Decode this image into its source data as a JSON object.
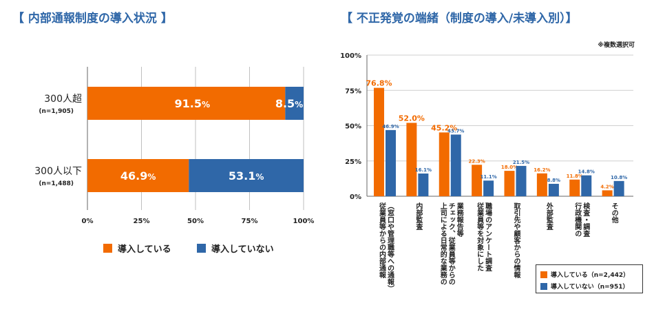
{
  "colors": {
    "orange": "#f26b00",
    "blue": "#2f67a8",
    "title": "#2f67a8"
  },
  "left_title": "【 内部通報制度の導入状況 】",
  "right_title": "【 不正発覚の端緒（制度の導入/未導入別）】",
  "right_note": "※複数選択可",
  "chart_data": [
    {
      "type": "bar",
      "orientation": "horizontal",
      "stacked": true,
      "percent_suffix": "%",
      "categories": [
        {
          "label": "300人超",
          "sub": "(n=1,905)"
        },
        {
          "label": "300人以下",
          "sub": "(n=1,488)"
        }
      ],
      "series": [
        {
          "name": "導入している",
          "values": [
            91.5,
            46.9
          ]
        },
        {
          "name": "導入していない",
          "values": [
            8.5,
            53.1
          ]
        }
      ],
      "xlim": [
        0,
        100
      ],
      "xticks": [
        "0%",
        "25%",
        "50%",
        "75%",
        "100%"
      ],
      "grid": true,
      "legend_position": "bottom"
    },
    {
      "type": "bar",
      "orientation": "vertical",
      "ylim": [
        0,
        100
      ],
      "yticks": [
        "0%",
        "25%",
        "50%",
        "75%",
        "100%"
      ],
      "categories": [
        "従業員等からの内部通報（窓口や管理職等への通報）",
        "内部監査",
        "上司による日常的な業務のチェック、従業員等からの業務報告等",
        "従業員等を対象にした職場のアンケート調査",
        "取引先や顧客からの情報",
        "外部監査",
        "行政機関の検査・調査",
        "その他"
      ],
      "category_lines": [
        [
          "従業員等からの内部通報",
          "（窓口や管理職等への通報）"
        ],
        [
          "内部監査"
        ],
        [
          "上司による日常的な業務の",
          "チェック、従業員等からの",
          "業務報告等"
        ],
        [
          "従業員等を対象にした",
          "職場のアンケート調査"
        ],
        [
          "取引先や顧客からの情報"
        ],
        [
          "外部監査"
        ],
        [
          "行政機関の",
          "検査・調査"
        ],
        [
          "その他"
        ]
      ],
      "series": [
        {
          "name": "導入している（n=2,442）",
          "values": [
            76.8,
            52.0,
            45.2,
            22.3,
            18.0,
            16.2,
            11.8,
            4.2
          ],
          "labels": [
            "76.8%",
            "52.0%",
            "45.2%",
            "22.3%",
            "18.0%",
            "16.2%",
            "11.8%",
            "4.2%"
          ]
        },
        {
          "name": "導入していない（n=951）",
          "values": [
            46.9,
            16.1,
            43.7,
            11.1,
            21.5,
            8.8,
            14.8,
            10.8
          ],
          "labels": [
            "46.9%",
            "16.1%",
            "43.7%",
            "11.1%",
            "21.5%",
            "8.8%",
            "14.8%",
            "10.8%"
          ]
        }
      ],
      "legend_position": "bottom-right"
    }
  ]
}
